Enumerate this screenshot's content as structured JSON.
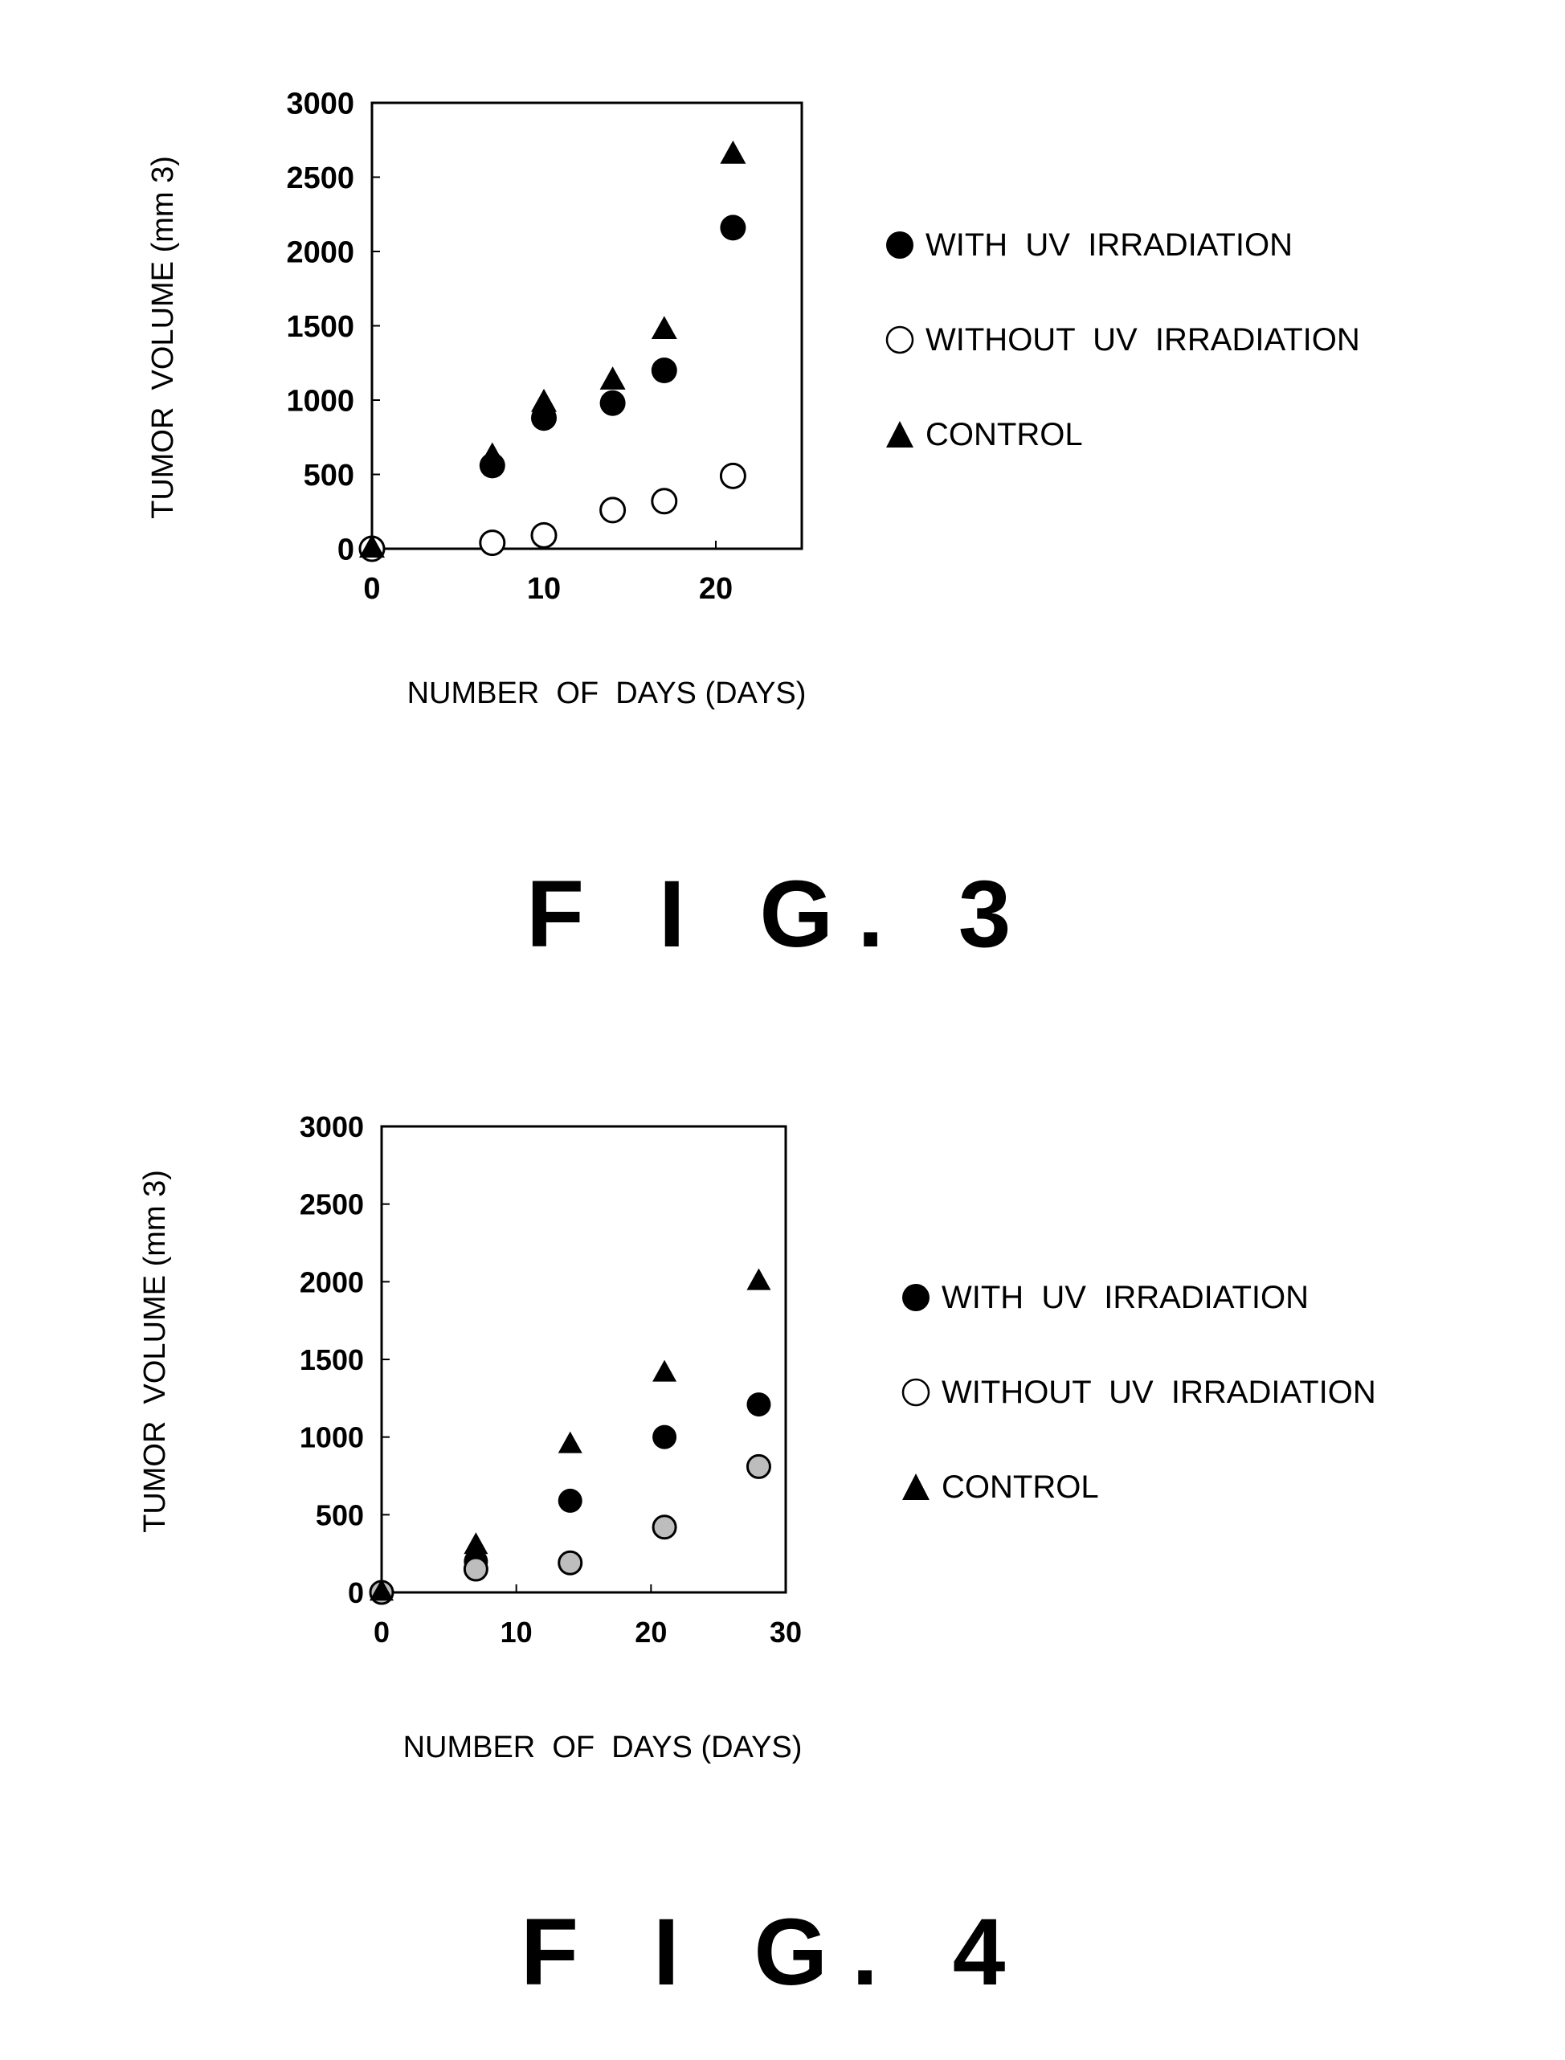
{
  "figures": [
    {
      "caption": "F I G. 3",
      "chart_data": {
        "type": "scatter",
        "title": "",
        "xlabel": "NUMBER  OF  DAYS (DAYS)",
        "ylabel": "TUMOR  VOLUME (mm 3)",
        "xlim": [
          0,
          25
        ],
        "ylim": [
          0,
          3000
        ],
        "xticks": [
          0,
          10,
          20
        ],
        "yticks": [
          0,
          500,
          1000,
          1500,
          2000,
          2500,
          3000
        ],
        "legend_position": "right",
        "series": [
          {
            "name": "WITH  UV  IRRADIATION",
            "marker": "filled-circle",
            "x": [
              0,
              7,
              10,
              14,
              17,
              21
            ],
            "y": [
              0,
              560,
              880,
              980,
              1200,
              2160
            ]
          },
          {
            "name": "WITHOUT  UV  IRRADIATION",
            "marker": "open-circle",
            "x": [
              0,
              7,
              10,
              14,
              17,
              21
            ],
            "y": [
              0,
              40,
              90,
              260,
              320,
              490
            ]
          },
          {
            "name": "CONTROL",
            "marker": "filled-triangle",
            "x": [
              0,
              7,
              10,
              14,
              17,
              21
            ],
            "y": [
              0,
              620,
              980,
              1130,
              1470,
              2650
            ]
          }
        ]
      }
    },
    {
      "caption": "F I G. 4",
      "chart_data": {
        "type": "scatter",
        "title": "",
        "xlabel": "NUMBER  OF  DAYS (DAYS)",
        "ylabel": "TUMOR  VOLUME (mm 3)",
        "xlim": [
          0,
          30
        ],
        "ylim": [
          0,
          3000
        ],
        "xticks": [
          0,
          10,
          20,
          30
        ],
        "yticks": [
          0,
          500,
          1000,
          1500,
          2000,
          2500,
          3000
        ],
        "legend_position": "right",
        "series": [
          {
            "name": "WITH  UV  IRRADIATION",
            "marker": "filled-circle",
            "x": [
              0,
              7,
              14,
              21,
              28
            ],
            "y": [
              0,
              200,
              590,
              1000,
              1210
            ]
          },
          {
            "name": "WITHOUT  UV  IRRADIATION",
            "marker": "open-circle",
            "x": [
              0,
              7,
              14,
              21,
              28
            ],
            "y": [
              0,
              150,
              190,
              420,
              810
            ]
          },
          {
            "name": "CONTROL",
            "marker": "filled-triangle",
            "x": [
              0,
              7,
              14,
              21,
              28
            ],
            "y": [
              0,
              300,
              950,
              1410,
              2000
            ]
          }
        ]
      }
    }
  ]
}
